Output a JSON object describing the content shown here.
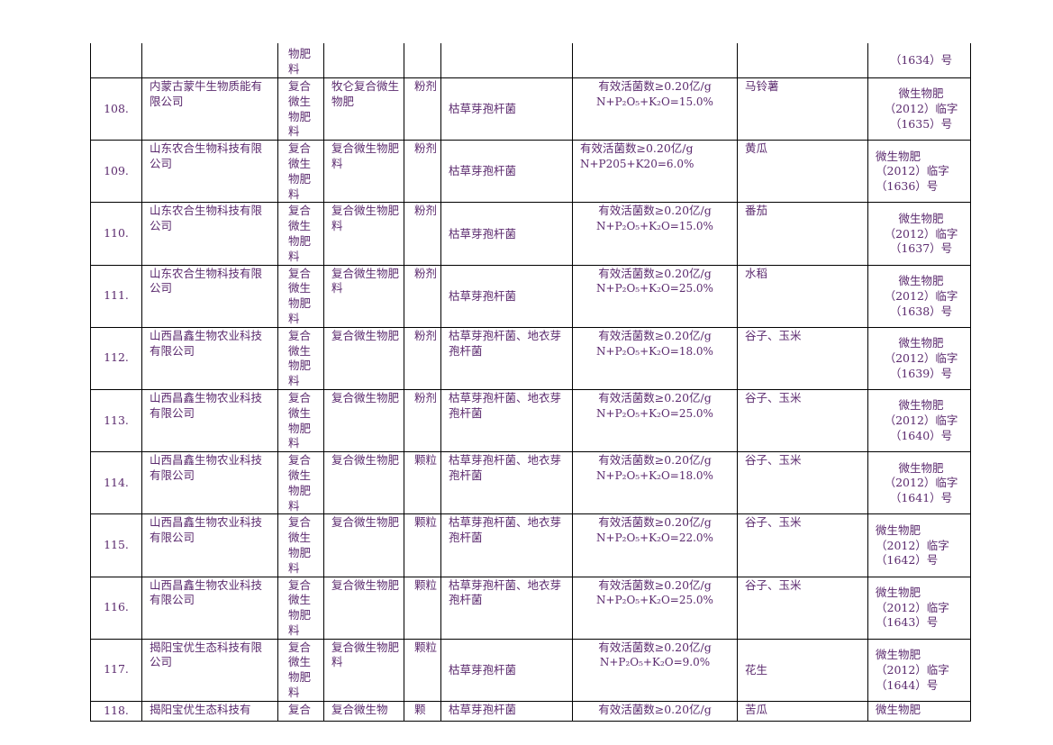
{
  "top_fragment": {
    "type_tail": "物肥\n料",
    "reg_tail": "（1634）号"
  },
  "rows": [
    {
      "no": "108.",
      "company": "内蒙古蒙牛生物质能有限公司",
      "product_type": "复合微生物肥料",
      "product_name": "牧仑复合微生物肥",
      "form": "粉剂",
      "strain": "枯草芽孢杆菌",
      "tech_line1": "有效活菌数≥0.20亿/g",
      "tech_line2": "N+P₂O₅+K₂O=15.0%",
      "crop": "马铃薯",
      "reg": "微生物肥\n（2012）临字\n（1635）号"
    },
    {
      "no": "109.",
      "company": "山东农合生物科技有限公司",
      "product_type": "复合微生物肥料",
      "product_name": "复合微生物肥料",
      "form": "粉剂",
      "strain": "枯草芽孢杆菌",
      "tech_line1": "有效活菌数≥0.20亿/g",
      "tech_line2": "N+P205+K20=6.0%",
      "crop": "黄瓜",
      "reg": "微生物肥\n（2012）临字\n（1636）号"
    },
    {
      "no": "110.",
      "company": "山东农合生物科技有限公司",
      "product_type": "复合微生物肥料",
      "product_name": "复合微生物肥料",
      "form": "粉剂",
      "strain": "枯草芽孢杆菌",
      "tech_line1": "有效活菌数≥0.20亿/g",
      "tech_line2": "N+P₂O₅+K₂O=15.0%",
      "crop": "番茄",
      "reg": "微生物肥\n（2012）临字\n（1637）号"
    },
    {
      "no": "111.",
      "company": "山东农合生物科技有限公司",
      "product_type": "复合微生物肥料",
      "product_name": "复合微生物肥料",
      "form": "粉剂",
      "strain": "枯草芽孢杆菌",
      "tech_line1": "有效活菌数≥0.20亿/g",
      "tech_line2": "N+P₂O₅+K₂O=25.0%",
      "crop": "水稻",
      "reg": "微生物肥\n（2012）临字\n（1638）号"
    },
    {
      "no": "112.",
      "company": "山西昌鑫生物农业科技有限公司",
      "product_type": "复合微生物肥料",
      "product_name": "复合微生物肥",
      "form": "粉剂",
      "strain": "枯草芽孢杆菌、地衣芽孢杆菌",
      "tech_line1": "有效活菌数≥0.20亿/g",
      "tech_line2": "N+P₂O₅+K₂O=18.0%",
      "crop": "谷子、玉米",
      "reg": "微生物肥\n（2012）临字\n（1639）号"
    },
    {
      "no": "113.",
      "company": "山西昌鑫生物农业科技有限公司",
      "product_type": "复合微生物肥料",
      "product_name": "复合微生物肥",
      "form": "粉剂",
      "strain": "枯草芽孢杆菌、地衣芽孢杆菌",
      "tech_line1": "有效活菌数≥0.20亿/g",
      "tech_line2": "N+P₂O₅+K₂O=25.0%",
      "crop": "谷子、玉米",
      "reg": "微生物肥\n（2012）临字\n（1640）号"
    },
    {
      "no": "114.",
      "company": "山西昌鑫生物农业科技有限公司",
      "product_type": "复合微生物肥料",
      "product_name": "复合微生物肥",
      "form": "颗粒",
      "strain": "枯草芽孢杆菌、地衣芽孢杆菌",
      "tech_line1": "有效活菌数≥0.20亿/g",
      "tech_line2": "N+P₂O₅+K₂O=18.0%",
      "crop": "谷子、玉米",
      "reg": "微生物肥\n（2012）临字\n（1641）号"
    },
    {
      "no": "115.",
      "company": "山西昌鑫生物农业科技有限公司",
      "product_type": "复合微生物肥料",
      "product_name": "复合微生物肥",
      "form": "颗粒",
      "strain": "枯草芽孢杆菌、地衣芽孢杆菌",
      "tech_line1": "有效活菌数≥0.20亿/g",
      "tech_line2": "N+P₂O₅+K₂O=22.0%",
      "crop": "谷子、玉米",
      "reg": "微生物肥\n（2012）临字\n（1642）号"
    },
    {
      "no": "116.",
      "company": "山西昌鑫生物农业科技有限公司",
      "product_type": "复合微生物肥料",
      "product_name": "复合微生物肥",
      "form": "颗粒",
      "strain": "枯草芽孢杆菌、地衣芽孢杆菌",
      "tech_line1": "有效活菌数≥0.20亿/g",
      "tech_line2": "N+P₂O₅+K₂O=25.0%",
      "crop": "谷子、玉米",
      "reg": "微生物肥\n（2012）临字\n（1643）号"
    },
    {
      "no": "117.",
      "company": "揭阳宝优生态科技有限公司",
      "product_type": "复合微生物肥料",
      "product_name": "复合微生物肥料",
      "form": "颗粒",
      "strain": "枯草芽孢杆菌",
      "tech_line1": "有效活菌数≥0.20亿/g",
      "tech_line2": "N+P₂O₅+K₂O=9.0%",
      "crop": "花生",
      "reg": "微生物肥\n（2012）临字\n（1644）号"
    }
  ],
  "last_row": {
    "no": "118.",
    "company": "揭阳宝优生态科技有",
    "product_type": "复合",
    "product_name": "复合微生物",
    "form": "颗",
    "strain": "枯草芽孢杆菌",
    "tech": "有效活菌数≥0.20亿/g",
    "crop": "苦瓜",
    "reg": "微生物肥"
  }
}
